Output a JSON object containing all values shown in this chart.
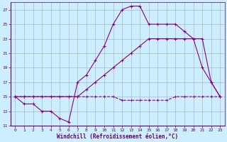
{
  "xlabel": "Windchill (Refroidissement éolien,°C)",
  "background_color": "#cceeff",
  "grid_color": "#aabbcc",
  "line_color": "#880088",
  "xlim": [
    -0.5,
    23.5
  ],
  "ylim": [
    11,
    28
  ],
  "xticks": [
    0,
    1,
    2,
    3,
    4,
    5,
    6,
    7,
    8,
    9,
    10,
    11,
    12,
    13,
    14,
    15,
    16,
    17,
    18,
    19,
    20,
    21,
    22,
    23
  ],
  "yticks": [
    11,
    13,
    15,
    17,
    19,
    21,
    23,
    25,
    27
  ],
  "line1_x": [
    0,
    1,
    2,
    3,
    4,
    5,
    6,
    7,
    8,
    9,
    10,
    11,
    12,
    13,
    14,
    15,
    16,
    17,
    18,
    19,
    20,
    21,
    22,
    23
  ],
  "line1_y": [
    15,
    14,
    14,
    13,
    13,
    12,
    11.5,
    17,
    18,
    20,
    22,
    25,
    27,
    27.5,
    27.5,
    25,
    25,
    25,
    25,
    24,
    23,
    19,
    17,
    15
  ],
  "line2_x": [
    0,
    1,
    2,
    3,
    4,
    5,
    6,
    7,
    8,
    9,
    10,
    11,
    12,
    13,
    14,
    15,
    16,
    17,
    18,
    19,
    20,
    21,
    22,
    23
  ],
  "line2_y": [
    15,
    15,
    15,
    15,
    15,
    15,
    15,
    15,
    16,
    17,
    18,
    19,
    20,
    21,
    22,
    23,
    23,
    23,
    23,
    23,
    23,
    23,
    17,
    15
  ],
  "line3_x": [
    0,
    1,
    2,
    3,
    4,
    5,
    6,
    7,
    8,
    9,
    10,
    11,
    12,
    13,
    14,
    15,
    16,
    17,
    18,
    19,
    20,
    21,
    22,
    23
  ],
  "line3_y": [
    15,
    15,
    15,
    15,
    15,
    15,
    15,
    15,
    15,
    15,
    15,
    15,
    14.5,
    14.5,
    14.5,
    14.5,
    14.5,
    14.5,
    15,
    15,
    15,
    15,
    15,
    15
  ]
}
